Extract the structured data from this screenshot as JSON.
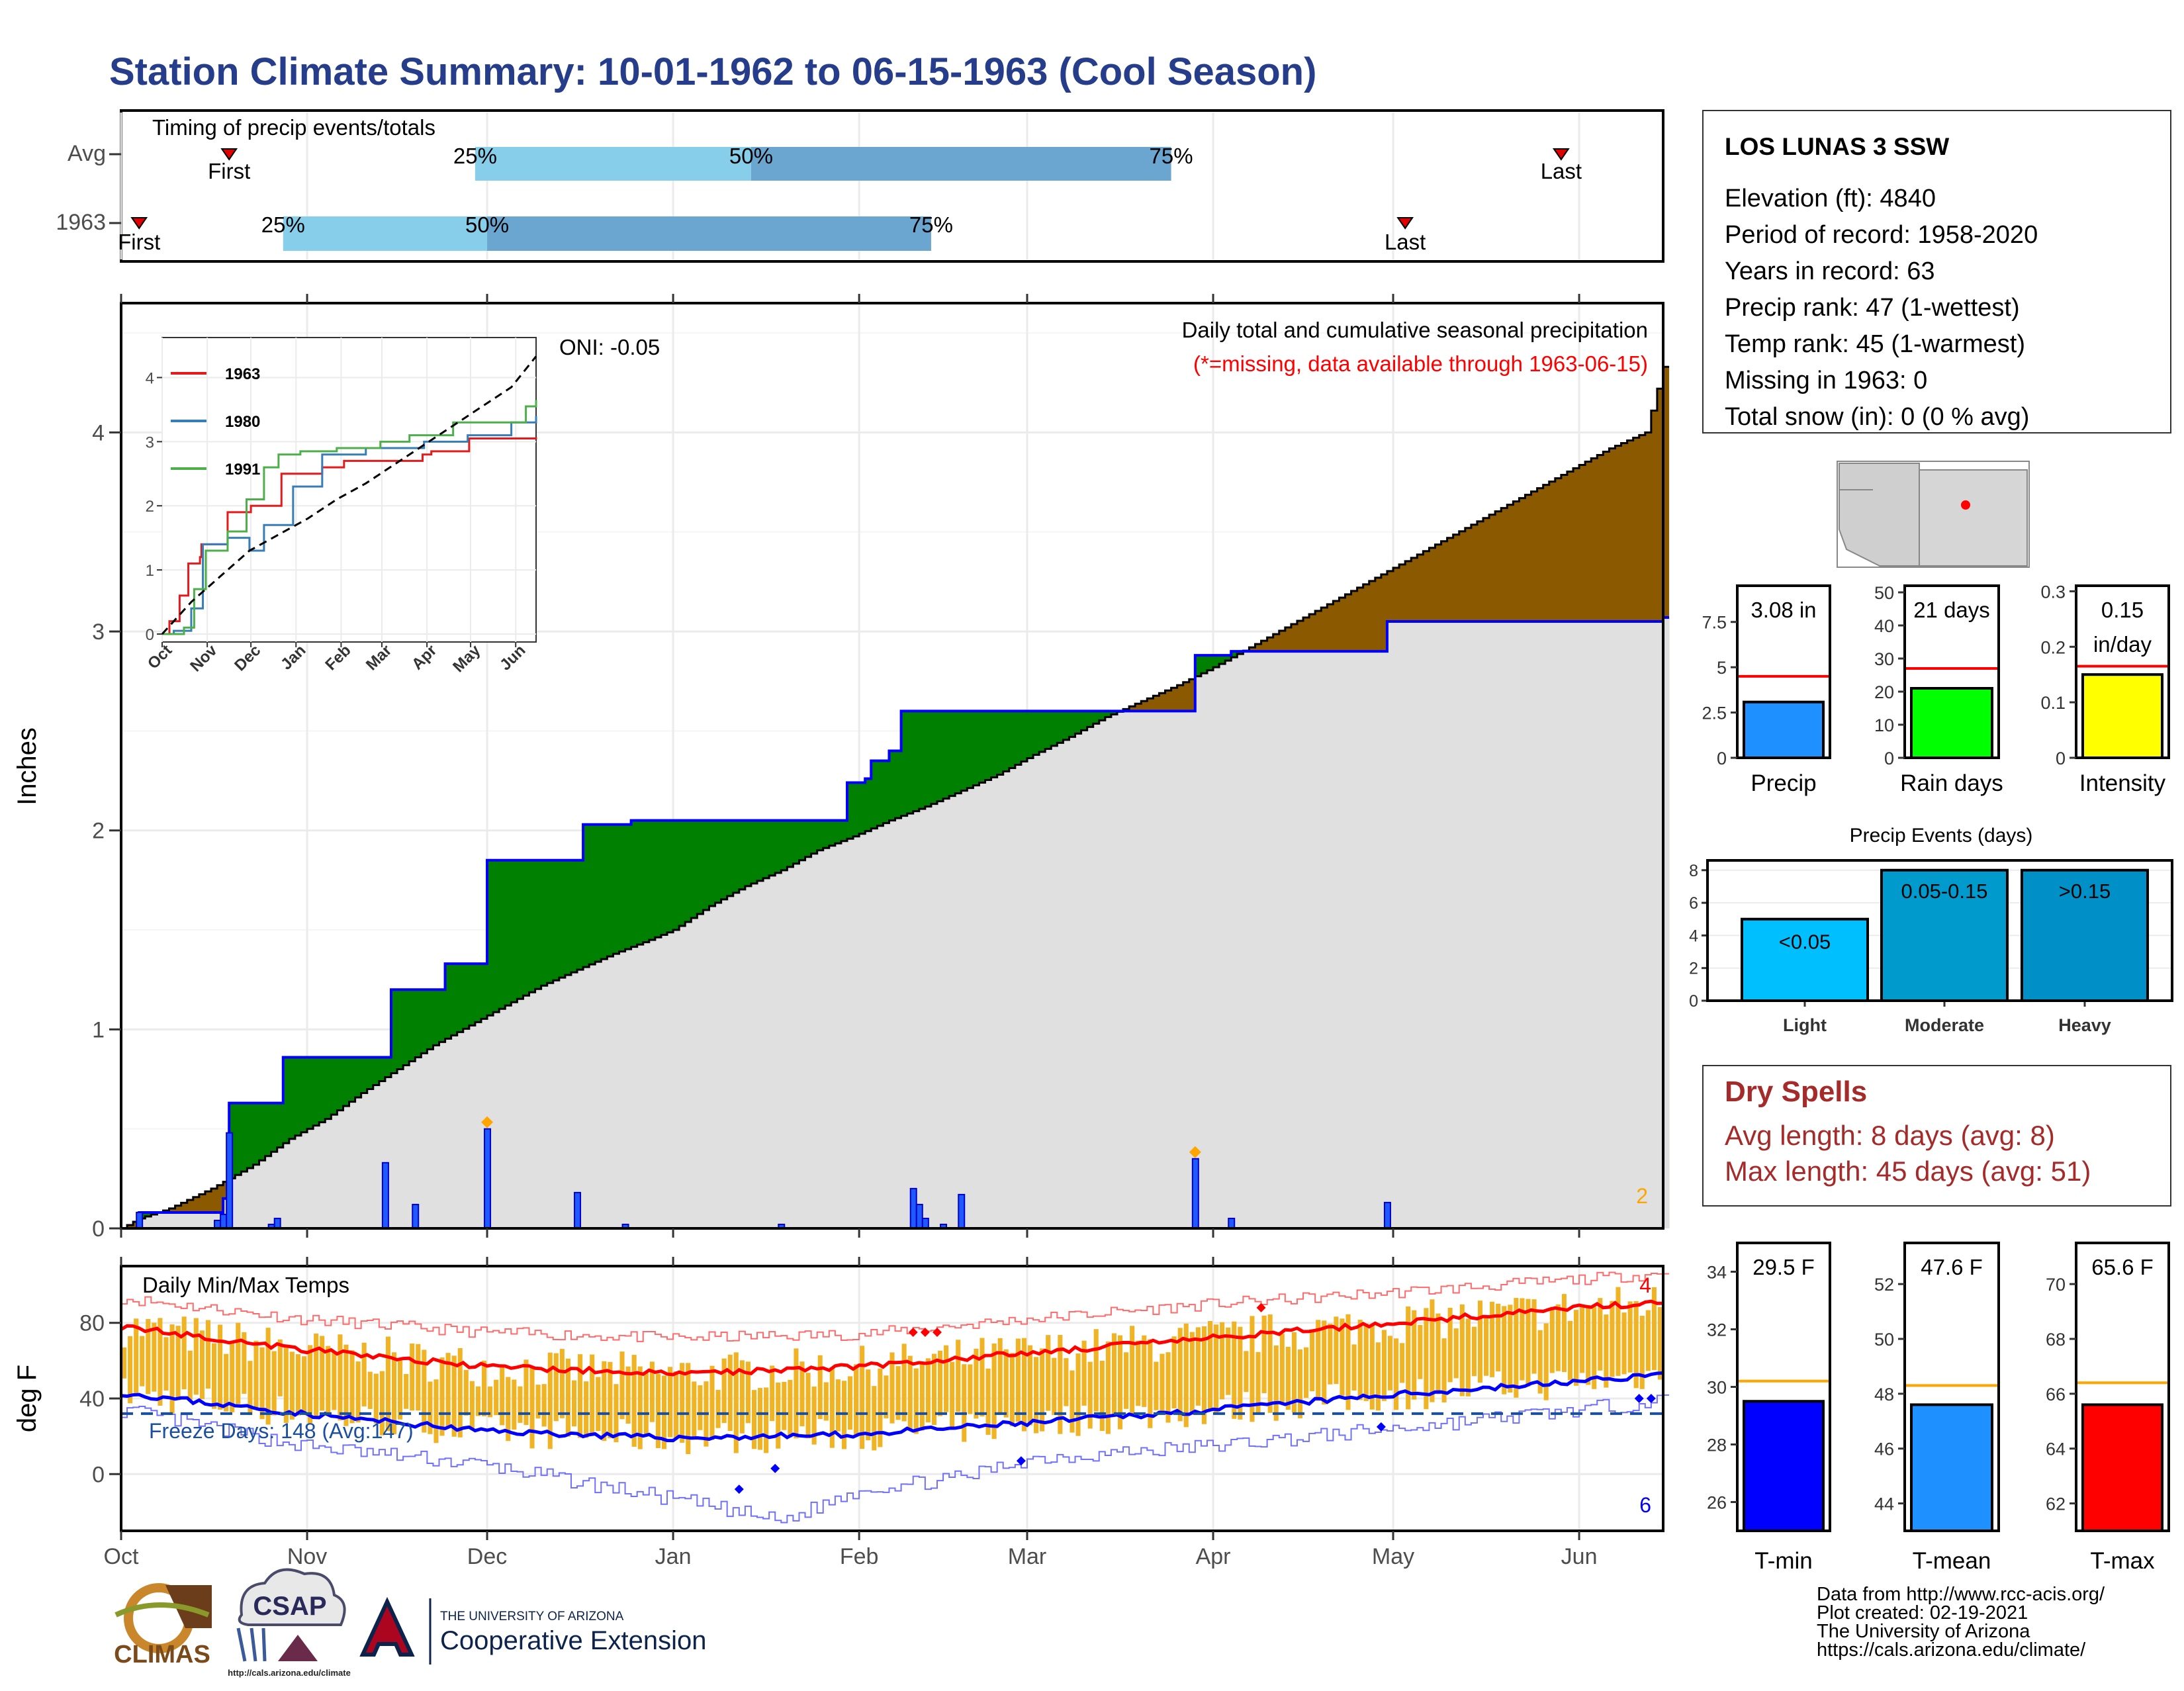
{
  "title": "Station Climate Summary: 10-01-1962 to 06-15-1963 (Cool Season)",
  "timing": {
    "caption": "Timing of precip events/totals",
    "rows": [
      {
        "label": "Avg",
        "first_day": 18,
        "last_day": 240,
        "p25": 59,
        "p50": 105,
        "p75": 175,
        "first_label": "First",
        "last_label": "Last"
      },
      {
        "label": "1963",
        "first_day": 3,
        "last_day": 214,
        "p25": 27,
        "p50": 61,
        "p75": 135,
        "first_label": "First",
        "last_label": "Last"
      }
    ],
    "pct_labels": [
      "25%",
      "50%",
      "75%"
    ]
  },
  "station": {
    "name": "LOS LUNAS 3 SSW",
    "lines": [
      "Elevation (ft): 4840",
      "Period of record: 1958-2020",
      "Years in record: 63",
      "Precip rank: 47 (1-wettest)",
      "Temp rank: 45 (1-warmest)",
      "Missing in 1963: 0",
      "Total snow (in): 0 (0 % avg)"
    ]
  },
  "dry_spells": {
    "title": "Dry Spells",
    "avg": "Avg length: 8 days (avg: 8)",
    "max": "Max length: 45 days (avg: 51)"
  },
  "footer": [
    "Data from http://www.rcc-acis.org/",
    "Plot created: 02-19-2021",
    "The University of Arizona",
    "https://cals.arizona.edu/climate/"
  ],
  "logos": {
    "climas": "CLIMAS",
    "csap": "CSAP",
    "csap_url": "http://cals.arizona.edu/climate",
    "ua_top": "THE UNIVERSITY OF ARIZONA",
    "ua_bottom": "Cooperative Extension"
  },
  "colors": {
    "title": "#253d8a",
    "obs_fill": "#8b5a00",
    "avg_fill": "#e0e0e0",
    "wet_fill": "#008000",
    "obs_line": "#000000",
    "avg_line": "#0000ff",
    "temp_bar": "#f0b323",
    "tmax_avg": "#ff0000",
    "tmin_avg": "#0000ff",
    "dry_spell": "#a52a2a"
  },
  "chart_data": [
    {
      "type": "area",
      "title": "Daily total and cumulative seasonal precipitation",
      "subtitle": "(*=missing, data available through 1963-06-15)",
      "oni": "ONI: -0.05",
      "ylabel": "Inches",
      "ylim": [
        0,
        4.65
      ],
      "yticks": [
        0,
        1,
        2,
        3,
        4
      ],
      "xlim": [
        0,
        257
      ],
      "month_ticks": [
        "Oct",
        "Nov",
        "Dec",
        "Jan",
        "Feb",
        "Mar",
        "Apr",
        "May",
        "Jun"
      ],
      "month_days": [
        0,
        31,
        61,
        92,
        123,
        151,
        182,
        212,
        243
      ],
      "corner_note": "2",
      "avg_cumulative": [
        [
          0,
          0
        ],
        [
          3,
          0.05
        ],
        [
          8,
          0.1
        ],
        [
          15,
          0.2
        ],
        [
          22,
          0.32
        ],
        [
          28,
          0.45
        ],
        [
          34,
          0.55
        ],
        [
          40,
          0.68
        ],
        [
          46,
          0.8
        ],
        [
          52,
          0.92
        ],
        [
          58,
          1.02
        ],
        [
          64,
          1.12
        ],
        [
          70,
          1.22
        ],
        [
          76,
          1.3
        ],
        [
          82,
          1.38
        ],
        [
          88,
          1.45
        ],
        [
          92,
          1.5
        ],
        [
          98,
          1.62
        ],
        [
          104,
          1.72
        ],
        [
          110,
          1.8
        ],
        [
          116,
          1.9
        ],
        [
          122,
          1.97
        ],
        [
          128,
          2.05
        ],
        [
          134,
          2.12
        ],
        [
          140,
          2.2
        ],
        [
          146,
          2.28
        ],
        [
          152,
          2.38
        ],
        [
          158,
          2.47
        ],
        [
          164,
          2.57
        ],
        [
          170,
          2.65
        ],
        [
          176,
          2.73
        ],
        [
          182,
          2.82
        ],
        [
          188,
          2.92
        ],
        [
          194,
          3.02
        ],
        [
          200,
          3.12
        ],
        [
          206,
          3.22
        ],
        [
          212,
          3.32
        ],
        [
          218,
          3.42
        ],
        [
          224,
          3.52
        ],
        [
          230,
          3.62
        ],
        [
          236,
          3.72
        ],
        [
          242,
          3.82
        ],
        [
          248,
          3.92
        ],
        [
          254,
          4.0
        ],
        [
          257,
          4.33
        ]
      ],
      "observed_cumulative": [
        [
          0,
          0
        ],
        [
          3,
          0.08
        ],
        [
          16,
          0.08
        ],
        [
          17,
          0.15
        ],
        [
          18,
          0.63
        ],
        [
          26,
          0.63
        ],
        [
          27,
          0.86
        ],
        [
          44,
          0.86
        ],
        [
          45,
          1.2
        ],
        [
          53,
          1.2
        ],
        [
          54,
          1.33
        ],
        [
          60,
          1.33
        ],
        [
          61,
          1.85
        ],
        [
          76,
          1.85
        ],
        [
          77,
          2.03
        ],
        [
          85,
          2.05
        ],
        [
          98,
          2.05
        ],
        [
          105,
          2.05
        ],
        [
          120,
          2.05
        ],
        [
          121,
          2.24
        ],
        [
          124,
          2.26
        ],
        [
          125,
          2.35
        ],
        [
          128,
          2.4
        ],
        [
          130,
          2.6
        ],
        [
          150,
          2.6
        ],
        [
          178,
          2.6
        ],
        [
          179,
          2.88
        ],
        [
          185,
          2.9
        ],
        [
          210,
          2.9
        ],
        [
          211,
          3.05
        ],
        [
          257,
          3.07
        ]
      ],
      "daily_precip": [
        [
          3,
          0.08
        ],
        [
          16,
          0.04
        ],
        [
          17,
          0.07
        ],
        [
          18,
          0.48
        ],
        [
          25,
          0.02
        ],
        [
          26,
          0.05
        ],
        [
          44,
          0.33
        ],
        [
          49,
          0.12
        ],
        [
          61,
          0.5
        ],
        [
          76,
          0.18
        ],
        [
          84,
          0.02
        ],
        [
          110,
          0.02
        ],
        [
          132,
          0.2
        ],
        [
          133,
          0.12
        ],
        [
          134,
          0.05
        ],
        [
          137,
          0.02
        ],
        [
          140,
          0.17
        ],
        [
          179,
          0.35
        ],
        [
          185,
          0.05
        ],
        [
          211,
          0.13
        ]
      ],
      "markers": [
        {
          "day": 61,
          "value": 0.5
        },
        {
          "day": 179,
          "value": 0.35
        }
      ]
    },
    {
      "type": "line",
      "title": "",
      "xlim": [
        0,
        257
      ],
      "ylim": [
        0,
        4.5
      ],
      "yticks": [
        0,
        1,
        2,
        3,
        4
      ],
      "month_ticks": [
        "Oct",
        "Nov",
        "Dec",
        "Jan",
        "Feb",
        "Mar",
        "Apr",
        "May",
        "Jun"
      ],
      "month_days": [
        0,
        31,
        61,
        92,
        123,
        151,
        182,
        212,
        243
      ],
      "series": [
        {
          "name": "1963",
          "color": "#e41a1c",
          "points": [
            [
              0,
              0
            ],
            [
              5,
              0.2
            ],
            [
              12,
              0.6
            ],
            [
              18,
              1.1
            ],
            [
              26,
              1.2
            ],
            [
              27,
              1.4
            ],
            [
              40,
              1.4
            ],
            [
              45,
              1.9
            ],
            [
              53,
              1.9
            ],
            [
              61,
              2.0
            ],
            [
              76,
              2.0
            ],
            [
              82,
              2.5
            ],
            [
              110,
              2.6
            ],
            [
              125,
              2.7
            ],
            [
              179,
              2.8
            ],
            [
              185,
              2.85
            ],
            [
              211,
              3.05
            ],
            [
              257,
              3.07
            ]
          ]
        },
        {
          "name": "1980",
          "color": "#377eb8",
          "points": [
            [
              0,
              0
            ],
            [
              8,
              0.05
            ],
            [
              20,
              0.4
            ],
            [
              28,
              1.4
            ],
            [
              45,
              1.5
            ],
            [
              60,
              1.3
            ],
            [
              70,
              1.7
            ],
            [
              90,
              2.3
            ],
            [
              110,
              2.8
            ],
            [
              140,
              2.9
            ],
            [
              180,
              3.0
            ],
            [
              210,
              3.1
            ],
            [
              240,
              3.3
            ],
            [
              257,
              3.4
            ]
          ]
        },
        {
          "name": "1991",
          "color": "#4daf4a",
          "points": [
            [
              0,
              0
            ],
            [
              15,
              0.1
            ],
            [
              22,
              0.7
            ],
            [
              30,
              1.3
            ],
            [
              45,
              1.6
            ],
            [
              58,
              2.1
            ],
            [
              70,
              2.6
            ],
            [
              80,
              2.8
            ],
            [
              95,
              2.85
            ],
            [
              120,
              2.9
            ],
            [
              150,
              3.0
            ],
            [
              170,
              3.1
            ],
            [
              200,
              3.3
            ],
            [
              230,
              3.3
            ],
            [
              250,
              3.55
            ],
            [
              257,
              3.65
            ]
          ]
        },
        {
          "name": "",
          "color": "#000000",
          "dashed": true,
          "points": [
            [
              0,
              0
            ],
            [
              20,
              0.5
            ],
            [
              40,
              0.9
            ],
            [
              60,
              1.3
            ],
            [
              80,
              1.55
            ],
            [
              100,
              1.8
            ],
            [
              120,
              2.1
            ],
            [
              140,
              2.35
            ],
            [
              160,
              2.65
            ],
            [
              180,
              2.95
            ],
            [
              200,
              3.25
            ],
            [
              220,
              3.55
            ],
            [
              240,
              3.85
            ],
            [
              257,
              4.33
            ]
          ]
        }
      ]
    },
    {
      "type": "bar",
      "title": "Daily Min/Max Temps",
      "ylabel": "deg F",
      "ylim": [
        -30,
        110
      ],
      "yticks": [
        0,
        40,
        80
      ],
      "xlim": [
        0,
        257
      ],
      "month_ticks": [
        "Oct",
        "Nov",
        "Dec",
        "Jan",
        "Feb",
        "Mar",
        "Apr",
        "May",
        "Jun"
      ],
      "month_days": [
        0,
        31,
        61,
        92,
        123,
        151,
        182,
        212,
        243
      ],
      "freeze_label": "Freeze Days: 148 (Avg:147)",
      "freeze_line": 32,
      "top_note": "4",
      "bottom_note": "6",
      "tmax_avg": [
        [
          0,
          78
        ],
        [
          30,
          66
        ],
        [
          60,
          57
        ],
        [
          92,
          53
        ],
        [
          123,
          57
        ],
        [
          151,
          64
        ],
        [
          182,
          72
        ],
        [
          212,
          80
        ],
        [
          243,
          88
        ],
        [
          257,
          91
        ]
      ],
      "tmin_avg": [
        [
          0,
          43
        ],
        [
          30,
          32
        ],
        [
          60,
          23
        ],
        [
          92,
          19
        ],
        [
          123,
          21
        ],
        [
          151,
          27
        ],
        [
          182,
          34
        ],
        [
          212,
          42
        ],
        [
          243,
          49
        ],
        [
          257,
          53
        ]
      ],
      "tmax_record": [
        [
          0,
          93
        ],
        [
          30,
          82
        ],
        [
          60,
          75
        ],
        [
          92,
          72
        ],
        [
          123,
          74
        ],
        [
          151,
          82
        ],
        [
          182,
          90
        ],
        [
          212,
          96
        ],
        [
          243,
          103
        ],
        [
          257,
          106
        ]
      ],
      "tmin_record": [
        [
          0,
          34
        ],
        [
          30,
          15
        ],
        [
          60,
          5
        ],
        [
          95,
          -15
        ],
        [
          110,
          -25
        ],
        [
          123,
          -8
        ],
        [
          140,
          -2
        ],
        [
          151,
          8
        ],
        [
          182,
          15
        ],
        [
          212,
          24
        ],
        [
          243,
          34
        ],
        [
          257,
          39
        ]
      ]
    },
    {
      "type": "bar",
      "name": "Precip",
      "categories": [
        "Precip"
      ],
      "values": [
        3.08
      ],
      "avg": 4.5,
      "ylim": [
        0,
        9.5
      ],
      "yticks": [
        0.0,
        2.5,
        5.0,
        7.5
      ],
      "label_lines": [
        "3.08 in"
      ],
      "color": "#1e90ff"
    },
    {
      "type": "bar",
      "name": "Rain days",
      "categories": [
        "Rain days"
      ],
      "values": [
        21
      ],
      "avg": 27,
      "ylim": [
        0,
        52
      ],
      "yticks": [
        0,
        10,
        20,
        30,
        40,
        50
      ],
      "label_lines": [
        "21 days"
      ],
      "color": "#00ff00"
    },
    {
      "type": "bar",
      "name": "Intensity",
      "categories": [
        "Intensity"
      ],
      "values": [
        0.15
      ],
      "avg": 0.165,
      "ylim": [
        0,
        0.31
      ],
      "yticks": [
        0.0,
        0.1,
        0.2,
        0.3
      ],
      "label_lines": [
        "0.15",
        "in/day"
      ],
      "color": "#ffff00"
    },
    {
      "type": "bar",
      "title": "Precip Events (days)",
      "categories": [
        "Light",
        "Moderate",
        "Heavy"
      ],
      "values": [
        5,
        8,
        8
      ],
      "bar_labels": [
        "<0.05",
        "0.05-0.15",
        ">0.15"
      ],
      "ylim": [
        0,
        8.6
      ],
      "yticks": [
        0,
        2,
        4,
        6,
        8
      ],
      "colors": [
        "#00bfff",
        "#009acd",
        "#0090c8"
      ]
    },
    {
      "type": "bar",
      "name": "T-min",
      "categories": [
        "T-min"
      ],
      "values": [
        29.5
      ],
      "avg": 30.2,
      "ylim": [
        25,
        35
      ],
      "yticks": [
        26,
        28,
        30,
        32,
        34
      ],
      "label_lines": [
        "29.5 F"
      ],
      "color": "#0000ff"
    },
    {
      "type": "bar",
      "name": "T-mean",
      "categories": [
        "T-mean"
      ],
      "values": [
        47.6
      ],
      "avg": 48.3,
      "ylim": [
        43,
        53.5
      ],
      "yticks": [
        44,
        46,
        48,
        50,
        52
      ],
      "label_lines": [
        "47.6 F"
      ],
      "color": "#1e90ff"
    },
    {
      "type": "bar",
      "name": "T-max",
      "categories": [
        "T-max"
      ],
      "values": [
        65.6
      ],
      "avg": 66.4,
      "ylim": [
        61,
        71.5
      ],
      "yticks": [
        62,
        64,
        66,
        68,
        70
      ],
      "label_lines": [
        "65.6 F"
      ],
      "color": "#ff0000"
    }
  ]
}
